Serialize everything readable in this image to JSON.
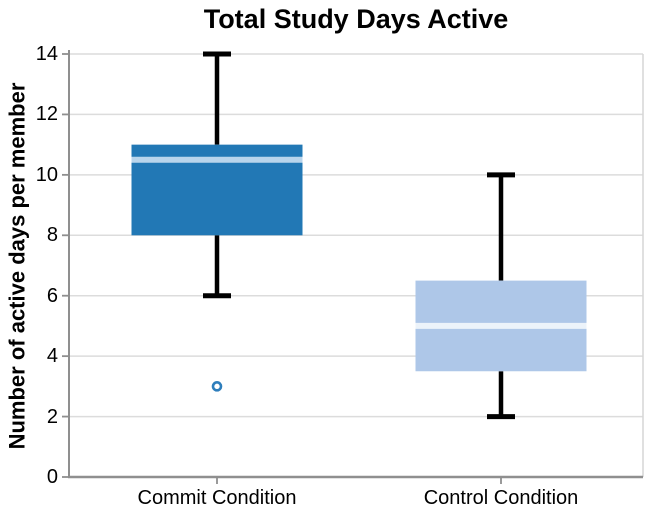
{
  "title": "Total Study Days Active",
  "chart_data": {
    "type": "boxplot",
    "title": "Total Study Days Active",
    "xlabel": "",
    "ylabel": "Number of active days per member",
    "categories": [
      "Commit Condition",
      "Control Condition"
    ],
    "ylim": [
      0,
      14
    ],
    "yticks": [
      0,
      2,
      4,
      6,
      8,
      10,
      12,
      14
    ],
    "grid": true,
    "legend": "none",
    "series": [
      {
        "name": "Commit Condition",
        "whisker_low": 6,
        "q1": 8,
        "median": 10.5,
        "q3": 11,
        "whisker_high": 14,
        "outliers": [
          3
        ],
        "box_color": "#2278b5",
        "median_color": "#b9d5ec"
      },
      {
        "name": "Control Condition",
        "whisker_low": 2,
        "q1": 3.5,
        "median": 5,
        "q3": 6.5,
        "whisker_high": 10,
        "outliers": [],
        "box_color": "#aec7e8",
        "median_color": "#ecf3fa"
      }
    ],
    "colors": {
      "whisker": "#000000",
      "grid": "#dcdcdc",
      "spine": "#8f8f8f",
      "right_spine": "#d6d6d6",
      "tick_label": "#000000",
      "outlier_edge": "#2e7ebc",
      "background": "#ffffff"
    }
  }
}
